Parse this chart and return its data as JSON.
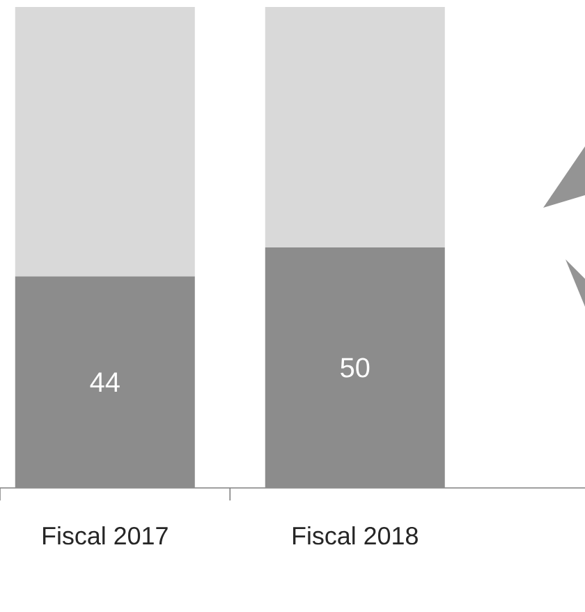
{
  "chart_data": {
    "type": "bar",
    "stacked": true,
    "categories": [
      "Fiscal 2017",
      "Fiscal 2018"
    ],
    "series": [
      {
        "color": "#8c8c8c",
        "values": [
          44,
          50
        ],
        "value_labels": [
          "44",
          "50"
        ]
      },
      {
        "color": "#d9d9d9",
        "values": [
          56,
          50
        ]
      }
    ]
  }
}
